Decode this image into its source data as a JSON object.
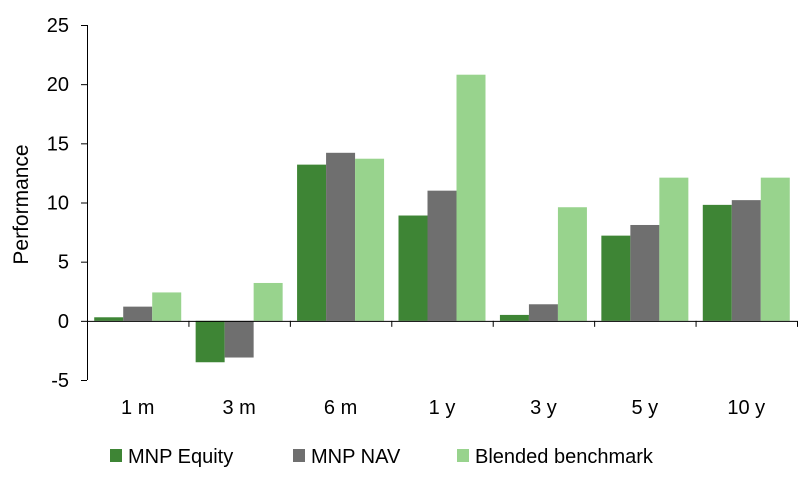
{
  "chart_data": {
    "type": "bar",
    "title": "",
    "xlabel": "",
    "ylabel": "Performance",
    "ylim": [
      -5,
      25
    ],
    "yticks": [
      -5,
      0,
      5,
      10,
      15,
      20,
      25
    ],
    "grid": false,
    "legend_position": "bottom",
    "categories": [
      "1 m",
      "3 m",
      "6 m",
      "1 y",
      "3 y",
      "5 y",
      "10 y"
    ],
    "series": [
      {
        "name": "MNP Equity",
        "color": "#3e8535",
        "values": [
          0.3,
          -3.5,
          13.2,
          8.9,
          0.5,
          7.2,
          9.8
        ]
      },
      {
        "name": "MNP NAV",
        "color": "#6f6f6f",
        "values": [
          1.2,
          -3.1,
          14.2,
          11.0,
          1.4,
          8.1,
          10.2
        ]
      },
      {
        "name": "Blended benchmark",
        "color": "#98d38d",
        "values": [
          2.4,
          3.2,
          13.7,
          20.8,
          9.6,
          12.1,
          12.1
        ]
      }
    ]
  }
}
